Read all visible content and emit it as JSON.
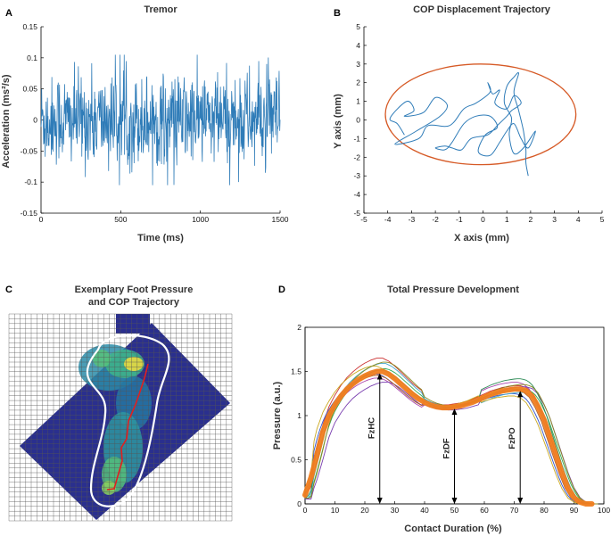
{
  "panels": {
    "A": {
      "label": "A",
      "title": "Tremor"
    },
    "B": {
      "label": "B",
      "title": "COP Displacement Trajectory"
    },
    "C": {
      "label": "C",
      "title_line1": "Exemplary Foot Pressure",
      "title_line2": "and COP Trajectory"
    },
    "D": {
      "label": "D",
      "title": "Total Pressure Development"
    }
  },
  "colors": {
    "tremor": "#2F7CB8",
    "ellipse": "#D65A26",
    "cop_path": "#2F7CB8",
    "mean_curve": "#F07D1F",
    "heat_bg": "#2A2F8E",
    "foot_outline": "#ffffff",
    "cop_trace": "#E02020"
  },
  "chart_data": [
    {
      "id": "A",
      "type": "line",
      "title": "Tremor",
      "xlabel": "Time (ms)",
      "ylabel": "Acceleration (ms²/s)",
      "xlim": [
        0,
        1500
      ],
      "ylim": [
        -0.15,
        0.15
      ],
      "xticks": [
        0,
        500,
        1000,
        1500
      ],
      "yticks": [
        -0.15,
        -0.1,
        -0.05,
        0,
        0.05,
        0.1,
        0.15
      ],
      "ytick_labels": [
        "-0.15",
        "-0.1",
        "-0.05",
        "0",
        "0.05",
        "0.1",
        "0.15"
      ],
      "signal": {
        "n_samples": 750,
        "amplitude_typical": 0.05,
        "amplitude_peak": 0.105
      }
    },
    {
      "id": "B",
      "type": "line",
      "title": "COP Displacement Trajectory",
      "xlabel": "X axis (mm)",
      "ylabel": "Y axis (mm)",
      "xlim": [
        -5,
        5
      ],
      "ylim": [
        -5,
        5
      ],
      "xticks": [
        -5,
        -4,
        -3,
        -2,
        -1,
        0,
        1,
        2,
        3,
        4,
        5
      ],
      "yticks": [
        -5,
        -4,
        -3,
        -2,
        -1,
        0,
        1,
        2,
        3,
        4,
        5
      ],
      "ellipse": {
        "cx": -0.1,
        "cy": 0.3,
        "rx": 4.0,
        "ry": 2.7
      },
      "path": [
        [
          -3.3,
          -0.8
        ],
        [
          -3.6,
          -0.2
        ],
        [
          -3.9,
          0.1
        ],
        [
          -3.2,
          1.0
        ],
        [
          -2.9,
          0.5
        ],
        [
          -3.3,
          0.2
        ],
        [
          -2.5,
          0.4
        ],
        [
          -2.0,
          1.2
        ],
        [
          -1.5,
          0.8
        ],
        [
          -1.8,
          0.2
        ],
        [
          -2.8,
          -0.6
        ],
        [
          -3.7,
          -1.3
        ],
        [
          -2.7,
          -1.0
        ],
        [
          -2.3,
          -0.3
        ],
        [
          -1.4,
          -0.3
        ],
        [
          -0.8,
          0.6
        ],
        [
          -0.3,
          0.9
        ],
        [
          0.3,
          1.5
        ],
        [
          0.2,
          2.0
        ],
        [
          0.4,
          1.4
        ],
        [
          0.7,
          1.6
        ],
        [
          0.5,
          0.9
        ],
        [
          1.0,
          0.6
        ],
        [
          1.3,
          1.3
        ],
        [
          1.6,
          0.9
        ],
        [
          1.2,
          0.5
        ],
        [
          1.0,
          0.2
        ],
        [
          0.6,
          -0.3
        ],
        [
          0.2,
          -0.8
        ],
        [
          -0.5,
          -1.0
        ],
        [
          -0.9,
          -1.6
        ],
        [
          -1.3,
          -1.5
        ],
        [
          -1.6,
          -1.4
        ],
        [
          -2.0,
          -1.5
        ],
        [
          -1.6,
          -1.6
        ],
        [
          -1.3,
          -1.2
        ],
        [
          -0.8,
          -0.2
        ],
        [
          -0.3,
          0.2
        ],
        [
          0.3,
          0.2
        ],
        [
          0.6,
          -0.4
        ],
        [
          0.1,
          -0.8
        ],
        [
          -0.2,
          -1.7
        ],
        [
          0.3,
          -1.9
        ],
        [
          0.7,
          -1.2
        ],
        [
          1.0,
          -0.6
        ],
        [
          1.3,
          -0.2
        ],
        [
          1.6,
          -1.0
        ],
        [
          1.9,
          -1.5
        ],
        [
          2.2,
          -0.6
        ],
        [
          1.7,
          -1.5
        ],
        [
          1.3,
          -1.8
        ],
        [
          1.1,
          -0.8
        ],
        [
          1.2,
          0.1
        ],
        [
          0.9,
          0.9
        ],
        [
          1.0,
          1.8
        ],
        [
          1.3,
          2.3
        ],
        [
          1.5,
          2.5
        ],
        [
          1.3,
          1.5
        ],
        [
          1.5,
          0.5
        ],
        [
          1.7,
          -0.6
        ],
        [
          1.8,
          -1.6
        ],
        [
          1.8,
          -2.3
        ],
        [
          1.9,
          -3.0
        ]
      ]
    },
    {
      "id": "D",
      "type": "line",
      "title": "Total Pressure Development",
      "xlabel": "Contact Duration (%)",
      "ylabel": "Pressure (a.u.)",
      "xlim": [
        0,
        100
      ],
      "ylim": [
        0,
        2
      ],
      "xticks": [
        0,
        10,
        20,
        30,
        40,
        50,
        60,
        70,
        80,
        90,
        100
      ],
      "yticks": [
        0,
        0.5,
        1,
        1.5,
        2
      ],
      "ytick_labels": [
        "0",
        "0.5",
        "1",
        "1.5",
        "2"
      ],
      "mean": {
        "x": [
          0,
          2,
          4,
          6,
          8,
          10,
          12,
          14,
          16,
          18,
          20,
          22,
          24,
          26,
          28,
          30,
          32,
          34,
          36,
          38,
          40,
          42,
          44,
          46,
          48,
          50,
          52,
          54,
          56,
          58,
          60,
          62,
          64,
          66,
          68,
          70,
          72,
          74,
          76,
          78,
          80,
          82,
          84,
          86,
          88,
          90,
          92,
          94,
          96
        ],
        "y": [
          0.1,
          0.3,
          0.55,
          0.82,
          1.0,
          1.12,
          1.22,
          1.3,
          1.36,
          1.41,
          1.45,
          1.48,
          1.5,
          1.5,
          1.47,
          1.42,
          1.36,
          1.3,
          1.24,
          1.19,
          1.15,
          1.12,
          1.1,
          1.09,
          1.09,
          1.1,
          1.11,
          1.13,
          1.15,
          1.18,
          1.21,
          1.24,
          1.26,
          1.28,
          1.29,
          1.3,
          1.3,
          1.28,
          1.22,
          1.1,
          0.95,
          0.75,
          0.55,
          0.35,
          0.18,
          0.07,
          0.02,
          0.0,
          0.0
        ]
      },
      "subjects": [
        {
          "color": "#CC3333",
          "dx": 0.0,
          "scale": 1.1,
          "peak2": 1.03
        },
        {
          "color": "#3355CC",
          "dx": -1.5,
          "scale": 0.98,
          "peak2": 0.96
        },
        {
          "color": "#33AA55",
          "dx": 1.5,
          "scale": 1.02,
          "peak2": 1.0
        },
        {
          "color": "#AA44AA",
          "dx": -0.8,
          "scale": 0.95,
          "peak2": 1.06
        },
        {
          "color": "#44AACC",
          "dx": 1.0,
          "scale": 1.06,
          "peak2": 0.97
        },
        {
          "color": "#CCAA22",
          "dx": -2.0,
          "scale": 1.04,
          "peak2": 0.94
        },
        {
          "color": "#7A3FB0",
          "dx": 2.0,
          "scale": 0.92,
          "peak2": 1.02
        },
        {
          "color": "#2E8B57",
          "dx": 0.5,
          "scale": 1.01,
          "peak2": 1.09
        },
        {
          "color": "#B0602A",
          "dx": -1.0,
          "scale": 0.97,
          "peak2": 0.99
        },
        {
          "color": "#8A8A20",
          "dx": 1.8,
          "scale": 1.07,
          "peak2": 1.04
        }
      ],
      "annotations": [
        {
          "label": "FzHC",
          "x": 25
        },
        {
          "label": "FzDF",
          "x": 50
        },
        {
          "label": "FzPO",
          "x": 72
        }
      ]
    }
  ],
  "foot_map": {
    "grid_cols": 40,
    "grid_rows": 43
  }
}
